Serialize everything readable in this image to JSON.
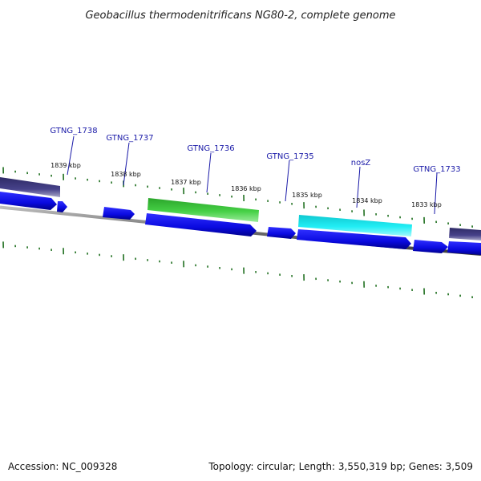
{
  "title": "Geobacillus thermodenitrificans NG80-2, complete genome",
  "footer": {
    "accession": "Accession: NC_009328",
    "summary": "Topology: circular; Length: 3,550,319 bp; Genes: 3,509"
  },
  "gene_labels": [
    "GTNG_1738",
    "GTNG_1737",
    "GTNG_1736",
    "GTNG_1735",
    "nosZ",
    "GTNG_1733"
  ],
  "tick_labels": [
    "1839 kbp",
    "1838 kbp",
    "1837 kbp",
    "1836 kbp",
    "1835 kbp",
    "1834 kbp",
    "1833 kbp"
  ],
  "colors": {
    "cds": "#0a0ae0",
    "highlight_green": "#3cc43c",
    "highlight_cyan": "#16e6ee",
    "dark_feature": "#3f3a78",
    "backbone": "#7a7a7a",
    "ticks": "#1f6f1f",
    "label": "#1a1aa8"
  }
}
